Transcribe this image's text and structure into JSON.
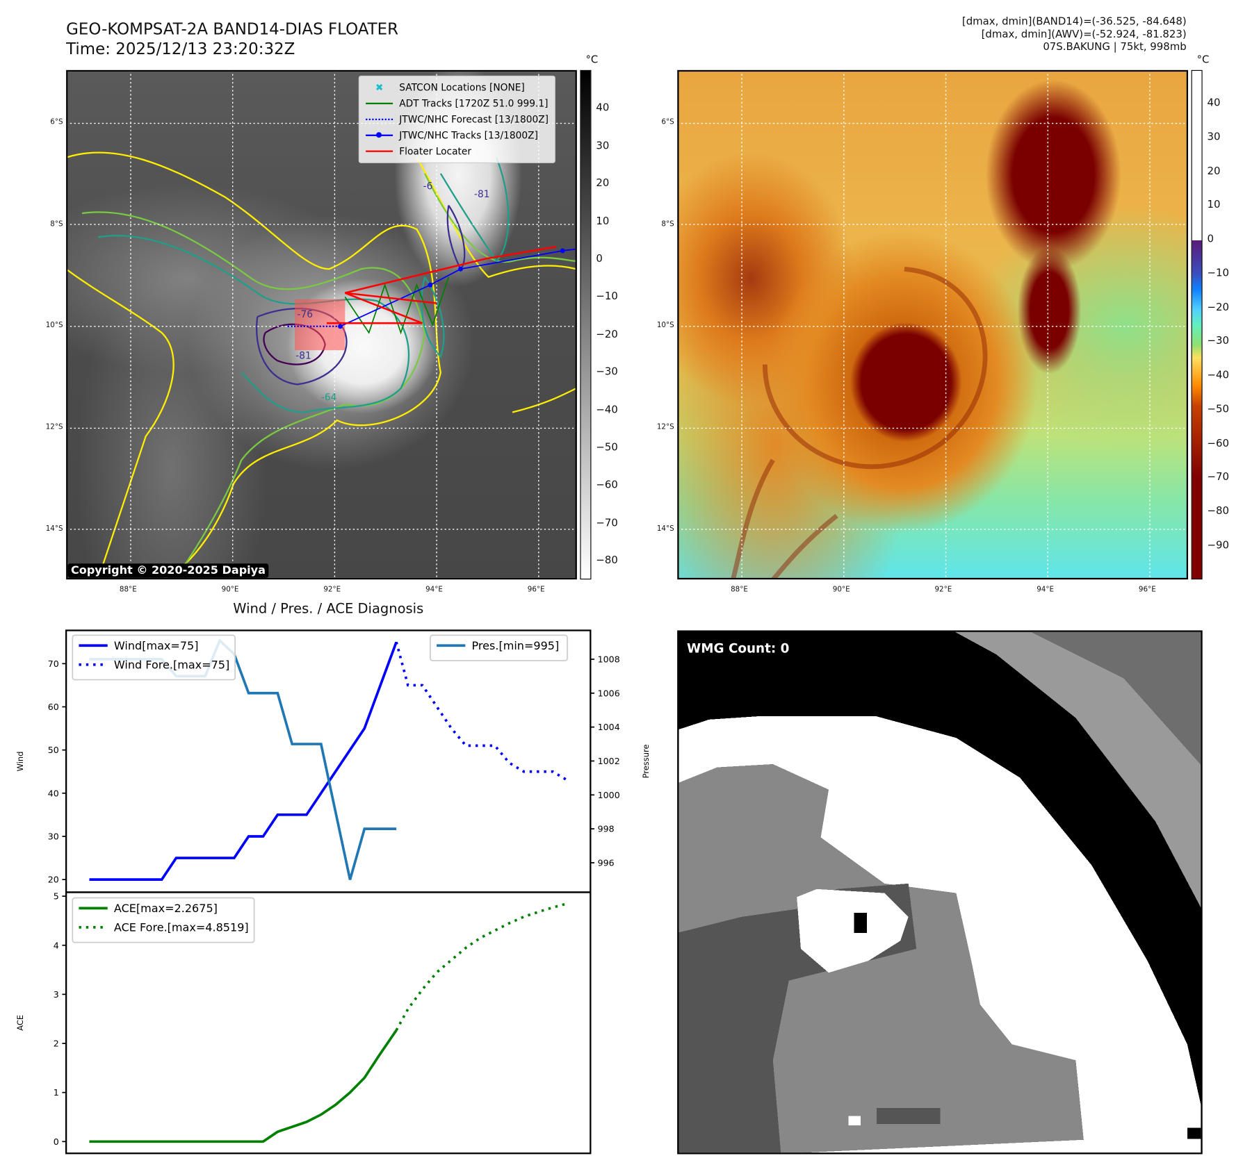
{
  "header": {
    "title": "GEO-KOMPSAT-2A BAND14-DIAS FLOATER",
    "time": "Time: 2025/12/13 23:20:32Z",
    "info_line1": "[dmax, dmin](BAND14)=(-36.525, -84.648)",
    "info_line2": "[dmax, dmin](AWV)=(-52.924, -81.823)",
    "info_line3": "07S.BAKUNG | 75kt, 998mb"
  },
  "maps": {
    "lat_ticks": [
      "6°S",
      "8°S",
      "10°S",
      "12°S",
      "14°S"
    ],
    "lon_ticks": [
      "88°E",
      "90°E",
      "92°E",
      "94°E",
      "96°E"
    ],
    "copyright": "Copyright © 2020-2025 Dapiya",
    "contour_labels": [
      "-76",
      "-81",
      "-64",
      "-6",
      "-81"
    ],
    "legend": [
      {
        "label": "SATCON Locations [NONE]",
        "color": "#17becf"
      },
      {
        "label": "ADT Tracks [1720Z 51.0 999.1]",
        "color": "#008000"
      },
      {
        "label": "JTWC/NHC Forecast [13/1800Z]",
        "color": "#0000ff"
      },
      {
        "label": "JTWC/NHC Tracks [13/1800Z]",
        "color": "#0000ff"
      },
      {
        "label": "Floater Locater",
        "color": "#ff0000"
      }
    ],
    "left_colorbar": {
      "unit": "°C",
      "ticks": [
        "40",
        "30",
        "20",
        "10",
        "0",
        "−10",
        "−20",
        "−30",
        "−40",
        "−50",
        "−60",
        "−70",
        "−80"
      ],
      "range": [
        -84.6,
        50.4
      ]
    },
    "right_colorbar": {
      "unit": "°C",
      "ticks": [
        "40",
        "30",
        "20",
        "10",
        "0",
        "−10",
        "−20",
        "−30",
        "−40",
        "−50",
        "−60",
        "−70",
        "−80",
        "−90"
      ],
      "range": [
        -99.6,
        50.1
      ]
    }
  },
  "wmg": {
    "label": "WMG Count: 0"
  },
  "chart_data": [
    {
      "type": "line",
      "title": "Wind / Pres. / ACE Diagnosis",
      "ylabel": "Wind",
      "y2label": "Pressure",
      "xlim": [
        -1.6,
        34.6
      ],
      "ylim": [
        17.05,
        77.7
      ],
      "y2lim": [
        994.26,
        1009.7
      ],
      "yticks": [
        20,
        30,
        40,
        50,
        60,
        70
      ],
      "y2ticks": [
        996,
        998,
        1000,
        1002,
        1004,
        1006,
        1008
      ],
      "series": [
        {
          "name": "Wind[max=75]",
          "axis": "left",
          "color": "#0000ff",
          "style": "solid",
          "x": [
            0,
            5,
            6,
            10,
            11,
            12,
            13,
            15,
            19,
            21.2
          ],
          "y": [
            20,
            20,
            25,
            25,
            30,
            30,
            35,
            35,
            55,
            75
          ]
        },
        {
          "name": "Wind Fore.[max=75]",
          "axis": "left",
          "color": "#0000ff",
          "style": "dotted",
          "x": [
            21.2,
            22,
            23,
            24,
            25,
            26,
            27,
            28,
            29,
            30,
            31,
            32,
            33
          ],
          "y": [
            75,
            65,
            65,
            60,
            55,
            51,
            51,
            51,
            47,
            45,
            45,
            45,
            43
          ]
        },
        {
          "name": "Pres.[min=995]",
          "axis": "right",
          "color": "#1f77b4",
          "style": "solid",
          "x": [
            0,
            5,
            6,
            8,
            9,
            10,
            11,
            13,
            14,
            16,
            18,
            19,
            21.2
          ],
          "y": [
            1008,
            1008,
            1007,
            1007,
            1009.1,
            1008.3,
            1006,
            1006,
            1003,
            1003,
            995,
            998,
            998
          ]
        }
      ]
    },
    {
      "type": "line",
      "ylabel": "ACE",
      "xlim": [
        -1.6,
        34.6
      ],
      "ylim": [
        -0.24,
        5.08
      ],
      "yticks": [
        0,
        1,
        2,
        3,
        4,
        5
      ],
      "series": [
        {
          "name": "ACE[max=2.2675]",
          "color": "#008000",
          "style": "solid",
          "x": [
            0,
            12,
            13,
            14,
            15,
            16,
            17,
            18,
            19,
            20,
            21.2
          ],
          "y": [
            0,
            0,
            0.2,
            0.3,
            0.4,
            0.55,
            0.75,
            1.0,
            1.3,
            1.75,
            2.2675
          ]
        },
        {
          "name": "ACE Fore.[max=4.8519]",
          "color": "#008000",
          "style": "dotted",
          "x": [
            21.2,
            22,
            23,
            24,
            25,
            26,
            27,
            28,
            29,
            30,
            31,
            32,
            33
          ],
          "y": [
            2.2675,
            2.7,
            3.1,
            3.45,
            3.7,
            3.95,
            4.15,
            4.3,
            4.45,
            4.58,
            4.68,
            4.77,
            4.85
          ]
        }
      ]
    }
  ]
}
